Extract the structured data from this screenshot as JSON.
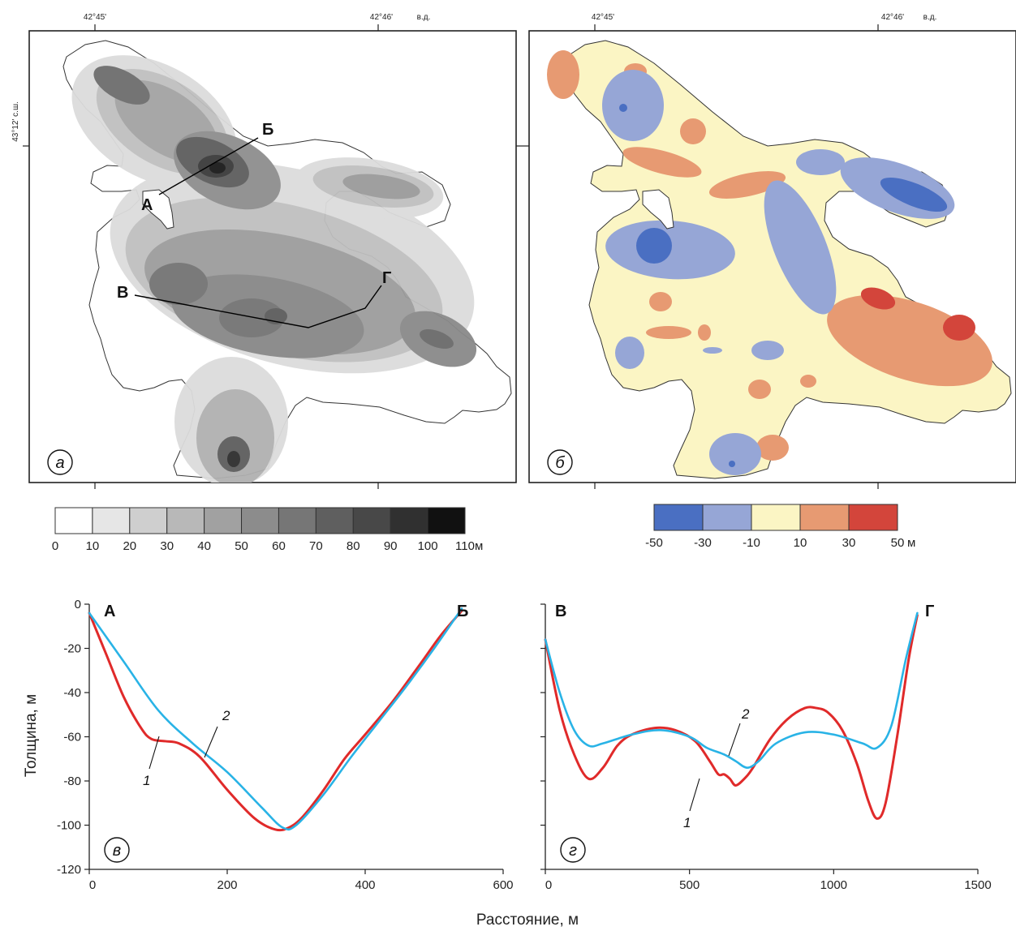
{
  "map_a": {
    "lon_labels": [
      "42°45'",
      "42°46'"
    ],
    "lon_suffix": "в.д.",
    "lat_label": "43°12' с.ш.",
    "point_labels": {
      "a": "А",
      "b": "Б",
      "v": "В",
      "g": "Г"
    },
    "panel": "а"
  },
  "map_b": {
    "lon_labels": [
      "42°45'",
      "42°46'"
    ],
    "lon_suffix": "в.д.",
    "panel": "б"
  },
  "legend_thickness": {
    "ticks": [
      "0",
      "10",
      "20",
      "30",
      "40",
      "50",
      "60",
      "70",
      "80",
      "90",
      "100",
      "110"
    ],
    "unit": "м",
    "colors": [
      "#ffffff",
      "#e6e6e6",
      "#cfcfcf",
      "#b8b8b8",
      "#a1a1a1",
      "#8c8c8c",
      "#767676",
      "#5f5f5f",
      "#484848",
      "#303030",
      "#111111"
    ]
  },
  "legend_diff": {
    "ticks": [
      "-50",
      "-30",
      "-10",
      "10",
      "30",
      "50"
    ],
    "unit": "м",
    "colors": [
      "#4a6fc2",
      "#96a6d6",
      "#fbf5c4",
      "#e79a72",
      "#d3453b"
    ]
  },
  "chart_data": [
    {
      "type": "line",
      "panel": "в",
      "xlim": [
        0,
        600
      ],
      "ylim": [
        -120,
        0
      ],
      "xticks": [
        "0",
        "200",
        "400",
        "600"
      ],
      "yticks": [
        "0",
        "-20",
        "-40",
        "-60",
        "-80",
        "-100",
        "-120"
      ],
      "start_label": "А",
      "end_label": "Б",
      "series": [
        {
          "name": "1",
          "color": "#e02a2a",
          "x": [
            0,
            25,
            50,
            75,
            90,
            110,
            130,
            160,
            200,
            240,
            270,
            290,
            310,
            340,
            370,
            400,
            440,
            480,
            510,
            540
          ],
          "y": [
            -4,
            -23,
            -42,
            -56,
            -61,
            -62,
            -63,
            -69,
            -84,
            -97,
            -102,
            -101,
            -96,
            -84,
            -70,
            -59,
            -44,
            -27,
            -14,
            -3
          ]
        },
        {
          "name": "2",
          "color": "#29b3e6",
          "x": [
            0,
            50,
            100,
            150,
            200,
            250,
            280,
            300,
            340,
            380,
            420,
            460,
            500,
            540
          ],
          "y": [
            -4,
            -26,
            -48,
            -63,
            -76,
            -92,
            -101,
            -100,
            -86,
            -69,
            -53,
            -37,
            -20,
            -2
          ]
        }
      ]
    },
    {
      "type": "line",
      "panel": "г",
      "xlim": [
        0,
        1500
      ],
      "ylim": [
        -120,
        0
      ],
      "xticks": [
        "0",
        "500",
        "1000",
        "1500"
      ],
      "start_label": "В",
      "end_label": "Г",
      "series": [
        {
          "name": "1",
          "color": "#e02a2a",
          "x": [
            0,
            50,
            100,
            150,
            200,
            250,
            300,
            380,
            450,
            520,
            570,
            600,
            620,
            640,
            660,
            690,
            720,
            780,
            840,
            900,
            940,
            980,
            1030,
            1080,
            1120,
            1150,
            1180,
            1220,
            1260,
            1290
          ],
          "y": [
            -16,
            -48,
            -68,
            -79,
            -74,
            -64,
            -59,
            -56,
            -57,
            -62,
            -71,
            -77,
            -77,
            -79,
            -82,
            -79,
            -74,
            -61,
            -52,
            -47,
            -47,
            -49,
            -57,
            -72,
            -89,
            -97,
            -90,
            -60,
            -25,
            -5
          ]
        },
        {
          "name": "2",
          "color": "#29b3e6",
          "x": [
            0,
            50,
            100,
            150,
            200,
            300,
            400,
            500,
            560,
            620,
            660,
            700,
            740,
            800,
            900,
            1000,
            1100,
            1150,
            1200,
            1250,
            1290
          ],
          "y": [
            -16,
            -40,
            -57,
            -64,
            -63,
            -59,
            -57,
            -60,
            -65,
            -68,
            -71,
            -74,
            -71,
            -63,
            -58,
            -59,
            -63,
            -65,
            -55,
            -25,
            -4
          ]
        }
      ]
    }
  ],
  "shared_xlabel": "Расстояние, м",
  "shared_ylabel": "Толщина, м",
  "curve_labels": {
    "one": "1",
    "two": "2"
  }
}
